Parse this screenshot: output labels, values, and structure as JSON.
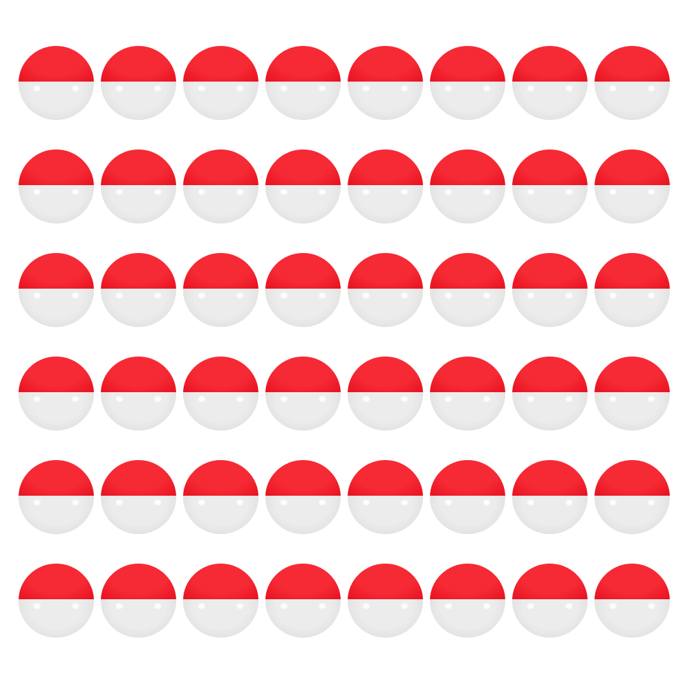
{
  "product": {
    "item": "two-tone ball",
    "rows": 6,
    "columns": 8,
    "colors": {
      "top": "#f52a35",
      "top_shade": "#e8111f",
      "bottom": "#ececec",
      "bottom_shade": "#d6d6d6",
      "background": "#ffffff"
    }
  }
}
